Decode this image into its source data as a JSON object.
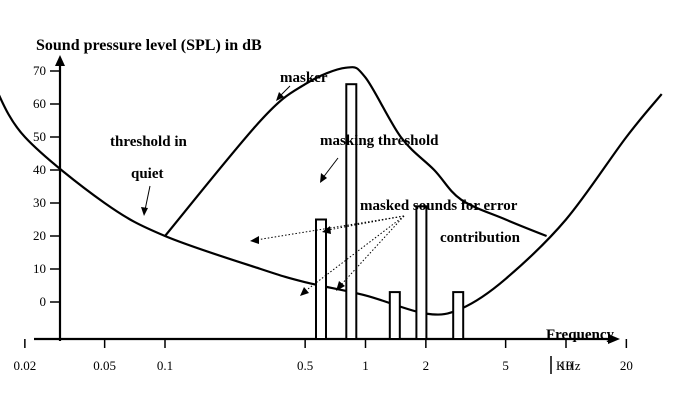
{
  "chart_data": {
    "type": "bar",
    "ylabel": "Sound pressure level (SPL) in dB",
    "xlabel": "Frequency",
    "x_unit": "KHz",
    "x_scale": "log",
    "x_ticks": [
      0.02,
      0.05,
      0.1,
      0.5,
      1,
      2,
      5,
      10,
      20
    ],
    "x_tick_labels": [
      "0.02",
      "0.05",
      "0.1",
      "0.5",
      "1",
      "2",
      "5",
      "10",
      "20"
    ],
    "y_ticks": [
      0,
      10,
      20,
      30,
      40,
      50,
      60,
      70
    ],
    "y_tick_labels": [
      "0",
      "10",
      "20",
      "30",
      "40",
      "50",
      "60",
      "70"
    ],
    "ylim": [
      -12,
      77
    ],
    "series": [
      {
        "name": "threshold in quiet",
        "type": "line",
        "points": [
          [
            0.014,
            66
          ],
          [
            0.02,
            50
          ],
          [
            0.05,
            30
          ],
          [
            0.1,
            20
          ],
          [
            0.3,
            10
          ],
          [
            0.5,
            6
          ],
          [
            1,
            2
          ],
          [
            2,
            -3.5
          ],
          [
            3,
            -2
          ],
          [
            5,
            7
          ],
          [
            10,
            25
          ],
          [
            20,
            50
          ],
          [
            30,
            63
          ]
        ]
      },
      {
        "name": "masking threshold",
        "type": "line",
        "points": [
          [
            0.1,
            20
          ],
          [
            0.3,
            55
          ],
          [
            0.5,
            66
          ],
          [
            0.8,
            71
          ],
          [
            1.0,
            68
          ],
          [
            1.5,
            50
          ],
          [
            2.2,
            40
          ],
          [
            3,
            31
          ],
          [
            5,
            25
          ],
          [
            8,
            20
          ]
        ]
      },
      {
        "name": "masker",
        "type": "bar",
        "bars": [
          {
            "x": 0.85,
            "value": 66
          }
        ]
      },
      {
        "name": "masked sounds for error contribution",
        "type": "bar",
        "bars": [
          {
            "x": 0.6,
            "value": 25
          },
          {
            "x": 1.4,
            "value": 3
          },
          {
            "x": 1.9,
            "value": 29
          },
          {
            "x": 2.9,
            "value": 3
          }
        ]
      }
    ],
    "annotations": {
      "masker": "masker",
      "masking_threshold": "masking threshold",
      "threshold_line1": "threshold in",
      "threshold_line2": "quiet",
      "masked_line1": "masked sounds for error",
      "masked_line2": "contribution"
    }
  }
}
